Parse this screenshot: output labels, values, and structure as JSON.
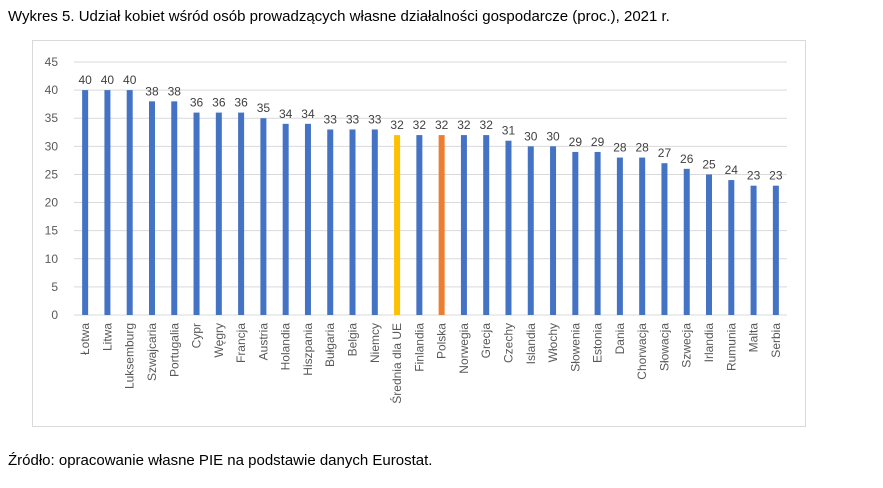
{
  "title": "Wykres 5. Udział kobiet wśród osób prowadzących własne działalności gospodarcze (proc.), 2021 r.",
  "source": "Źródło: opracowanie własne PIE na podstawie danych Eurostat.",
  "chart_data": {
    "type": "bar",
    "categories": [
      "Łotwa",
      "Litwa",
      "Luksemburg",
      "Szwajcaria",
      "Portugalia",
      "Cypr",
      "Węgry",
      "Francja",
      "Austria",
      "Holandia",
      "Hiszpania",
      "Bułgaria",
      "Belgia",
      "Niemcy",
      "Średnia dla UE",
      "Finlandia",
      "Polska",
      "Norwegia",
      "Grecja",
      "Czechy",
      "Islandia",
      "Włochy",
      "Słowenia",
      "Estonia",
      "Dania",
      "Chorwacja",
      "Słowacja",
      "Szwecja",
      "Irlandia",
      "Rumunia",
      "Malta",
      "Serbia"
    ],
    "values": [
      40,
      40,
      40,
      38,
      38,
      36,
      36,
      36,
      35,
      34,
      34,
      33,
      33,
      33,
      32,
      32,
      32,
      32,
      32,
      31,
      30,
      30,
      29,
      29,
      28,
      28,
      27,
      26,
      25,
      24,
      23,
      23
    ],
    "ylim": [
      0,
      45
    ],
    "yticks": [
      0,
      5,
      10,
      15,
      20,
      25,
      30,
      35,
      40,
      45
    ],
    "grid": true,
    "colors": {
      "default": "#4472C4",
      "Średnia dla UE": "#FFC000",
      "Polska": "#ED7D31"
    }
  }
}
